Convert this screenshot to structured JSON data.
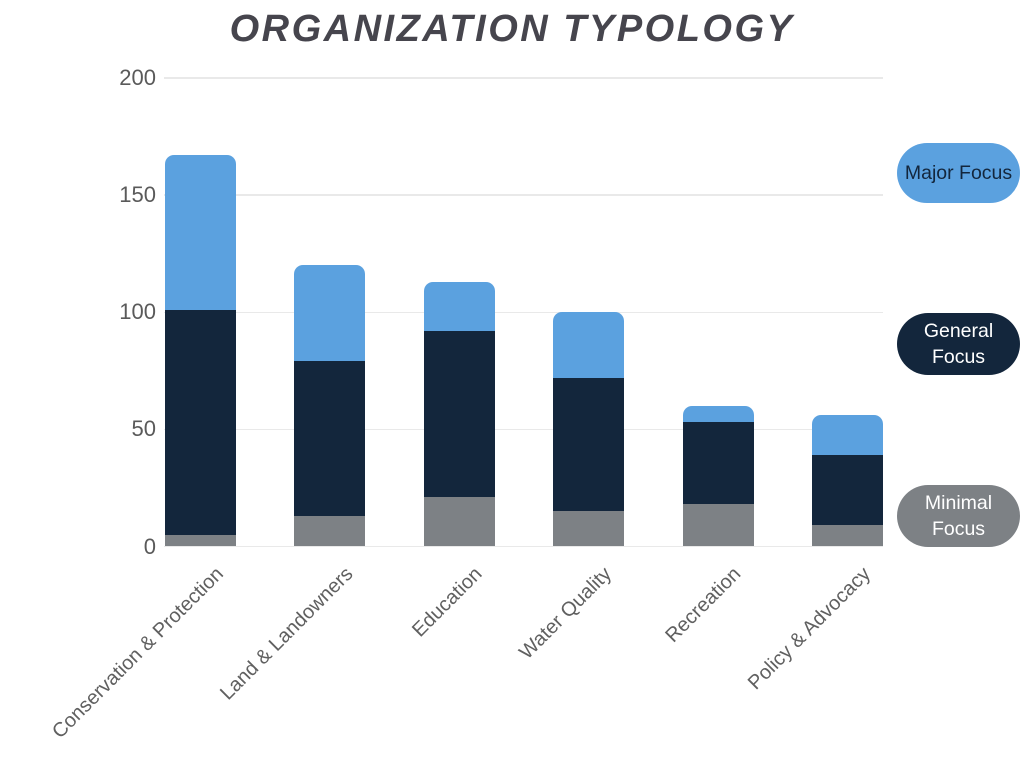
{
  "chart_data": {
    "type": "bar",
    "stacked": true,
    "title": "ORGANIZATION TYPOLOGY",
    "categories": [
      "Conservation & Protection",
      "Land & Landowners",
      "Education",
      "Water Quality",
      "Recreation",
      "Policy & Advocacy"
    ],
    "series": [
      {
        "name": "Minimal Focus",
        "color": "#7d8185",
        "values": [
          5,
          13,
          21,
          15,
          18,
          9
        ]
      },
      {
        "name": "General Focus",
        "color": "#13263c",
        "values": [
          96,
          66,
          71,
          57,
          35,
          30
        ]
      },
      {
        "name": "Major Focus",
        "color": "#5ba1df",
        "values": [
          66,
          41,
          21,
          28,
          7,
          17
        ]
      }
    ],
    "stack_totals": [
      167,
      120,
      113,
      100,
      60,
      56
    ],
    "xlabel": "",
    "ylabel": "",
    "y_ticks": [
      0,
      50,
      100,
      150,
      200
    ],
    "ylim": [
      0,
      200
    ],
    "grid": true,
    "legend_position": "right",
    "legend": [
      {
        "id": "major-focus",
        "lines": [
          "Major Focus"
        ],
        "bg": "#5ba1df",
        "text_color": "#13263c"
      },
      {
        "id": "general-focus",
        "lines": [
          "General",
          "Focus"
        ],
        "bg": "#13263c",
        "text_color": "#ffffff"
      },
      {
        "id": "minimal-focus",
        "lines": [
          "Minimal",
          "Focus"
        ],
        "bg": "#7d8185",
        "text_color": "#ffffff"
      }
    ],
    "colors": {
      "background": "#ffffff",
      "title_text": "#46454d",
      "axis_text": "#5a5a5a",
      "category_text": "#606060",
      "gridline": "#e9e9e9"
    }
  }
}
